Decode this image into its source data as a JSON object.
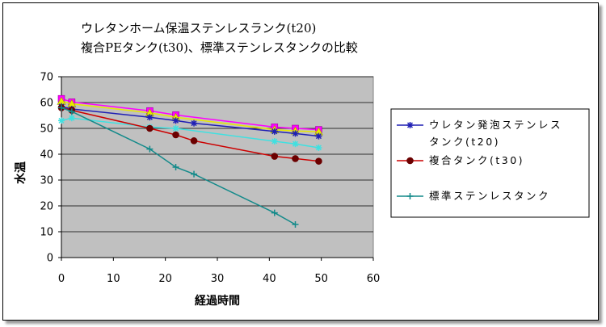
{
  "chart_data": {
    "type": "line",
    "title_line1": "ウレタンホーム保温ステンレスランク(t20)",
    "title_line2": "複合PEタンク(t30)、標準ステンレスタンクの比較",
    "xlabel": "経過時間",
    "ylabel": "水温",
    "xlim": [
      0,
      60
    ],
    "ylim": [
      0,
      70
    ],
    "x_ticks": [
      "0",
      "10",
      "20",
      "30",
      "40",
      "50",
      "60"
    ],
    "y_ticks": [
      "0",
      "10",
      "20",
      "30",
      "40",
      "50",
      "60",
      "70"
    ],
    "grid": "horizontal",
    "plot_background": "#c0c0c0",
    "legend_position": "right",
    "series": [
      {
        "name": "ウレタン発泡ステンレスタンク(t20)",
        "legend_lines": [
          "ウレタン発泡ステンレス",
          "タンク(t20)"
        ],
        "color": "#1f1fb4",
        "marker": "asterisk",
        "x": [
          0,
          2,
          17,
          22,
          25.5,
          41,
          45,
          49.5
        ],
        "y": [
          58.5,
          57.5,
          54.3,
          53,
          52,
          48.8,
          48,
          47
        ]
      },
      {
        "name": "複合タンク(t30)",
        "color": "#cc0000",
        "marker_color": "#6b0000",
        "marker": "circle",
        "x": [
          0,
          2,
          17,
          22,
          25.5,
          41,
          45,
          49.5
        ],
        "y": [
          58,
          57,
          50,
          47.5,
          45.2,
          39.2,
          38.3,
          37.3
        ]
      },
      {
        "name": "標準ステンレスタンク",
        "color": "#138a8a",
        "marker": "plus",
        "x": [
          0,
          2,
          17,
          22,
          25.5,
          41,
          45
        ],
        "y": [
          58,
          56.5,
          42,
          35,
          32.3,
          17.3,
          12.8
        ]
      },
      {
        "color": "#ff00ff",
        "marker": "square",
        "x": [
          0,
          2,
          17,
          22,
          41,
          45,
          49.5
        ],
        "y": [
          61.5,
          60.2,
          56.8,
          55.2,
          50.5,
          50,
          49.5
        ]
      },
      {
        "color": "#e8e800",
        "marker": "triangle",
        "x": [
          0,
          2,
          17,
          22,
          41,
          45,
          49.5
        ],
        "y": [
          60.5,
          59.5,
          56,
          54.3,
          49.5,
          49,
          48.7
        ]
      },
      {
        "color": "#40e0e0",
        "marker": "asterisk",
        "x": [
          0,
          2,
          17,
          22,
          41,
          45,
          49.5
        ],
        "y": [
          53,
          54,
          50.5,
          50,
          45,
          44,
          42.5
        ]
      }
    ]
  }
}
